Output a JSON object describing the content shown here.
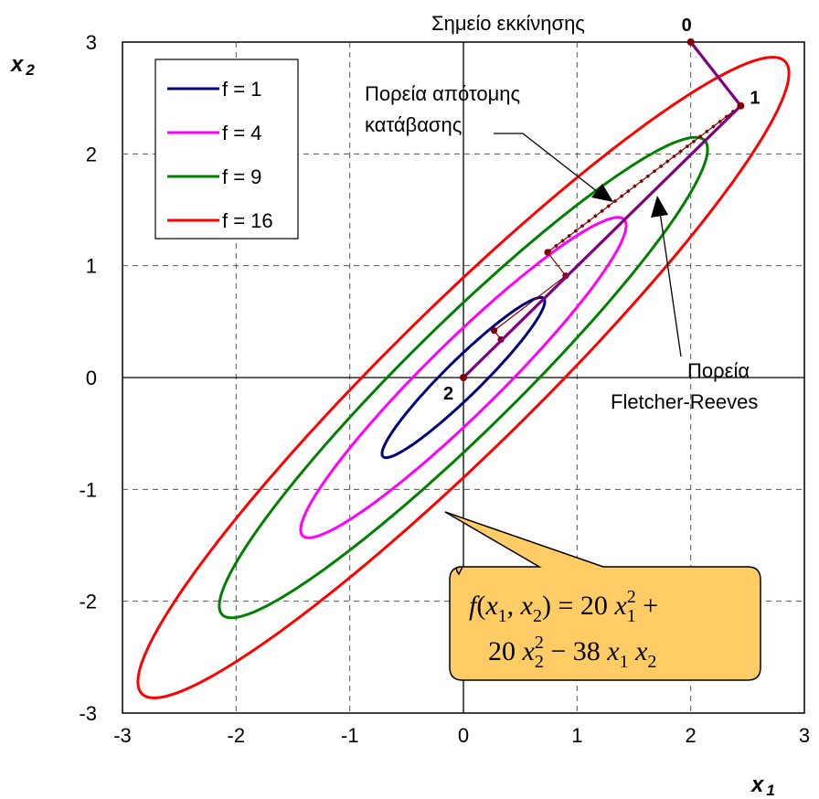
{
  "chart_data": {
    "type": "contour",
    "xlabel": "x",
    "xlabel_sub": "1",
    "ylabel": "x",
    "ylabel_sub": "2",
    "xlim": [
      -3,
      3
    ],
    "ylim": [
      -3,
      3
    ],
    "xticks": [
      "-3",
      "-2",
      "-1",
      "0",
      "1",
      "2",
      "3"
    ],
    "yticks": [
      "-3",
      "-2",
      "-1",
      "0",
      "1",
      "2",
      "3"
    ],
    "grid": true,
    "legend_position": "top-left",
    "function": {
      "a": 20,
      "b": 20,
      "c": -38
    },
    "formula_lines": [
      [
        {
          "t": "f",
          "i": true
        },
        {
          "t": "("
        },
        {
          "t": "x",
          "i": true
        },
        {
          "t": "1",
          "sub": true
        },
        {
          "t": ", "
        },
        {
          "t": "x",
          "i": true
        },
        {
          "t": "2",
          "sub": true
        },
        {
          "t": ") = 20 "
        },
        {
          "t": "x",
          "i": true
        },
        {
          "t": "1",
          "sub": true
        },
        {
          "t": "2",
          "sup": true
        },
        {
          "t": " +"
        }
      ],
      [
        {
          "t": "20 "
        },
        {
          "t": "x",
          "i": true
        },
        {
          "t": "2",
          "sub": true
        },
        {
          "t": "2",
          "sup": true
        },
        {
          "t": " − 38 "
        },
        {
          "t": "x",
          "i": true
        },
        {
          "t": "1",
          "sub": true
        },
        {
          "t": " "
        },
        {
          "t": "x",
          "i": true
        },
        {
          "t": "2",
          "sub": true
        }
      ]
    ],
    "series": [
      {
        "name": "f = 1",
        "level": 1,
        "color": "#000080"
      },
      {
        "name": "f = 4",
        "level": 4,
        "color": "#ff00ff"
      },
      {
        "name": "f = 9",
        "level": 9,
        "color": "#008000"
      },
      {
        "name": "f = 16",
        "level": 16,
        "color": "#ff0000"
      }
    ],
    "fletcher_reeves_path": [
      {
        "label": "0",
        "x": 2.0,
        "y": 3.0
      },
      {
        "label": "1",
        "x": 2.44,
        "y": 2.43
      },
      {
        "label": "2",
        "x": 0.0,
        "y": 0.0
      }
    ],
    "steepest_descent_path": [
      {
        "x": 2.44,
        "y": 2.43
      },
      {
        "x": 0.74,
        "y": 1.12
      },
      {
        "x": 0.9,
        "y": 0.91
      },
      {
        "x": 0.27,
        "y": 0.42
      },
      {
        "x": 0.33,
        "y": 0.34
      }
    ],
    "path_colors": {
      "fletcher_reeves": "#800080",
      "steepest": "#800000",
      "callout_fill": "#ffcc66"
    },
    "annotations": {
      "start": "Σημείο εκκίνησης",
      "steepest_line1": "Πορεία απότομης",
      "steepest_line2": "κατάβασης",
      "fr_line1": "Πορεία",
      "fr_line2": "Fletcher-Reeves"
    }
  }
}
